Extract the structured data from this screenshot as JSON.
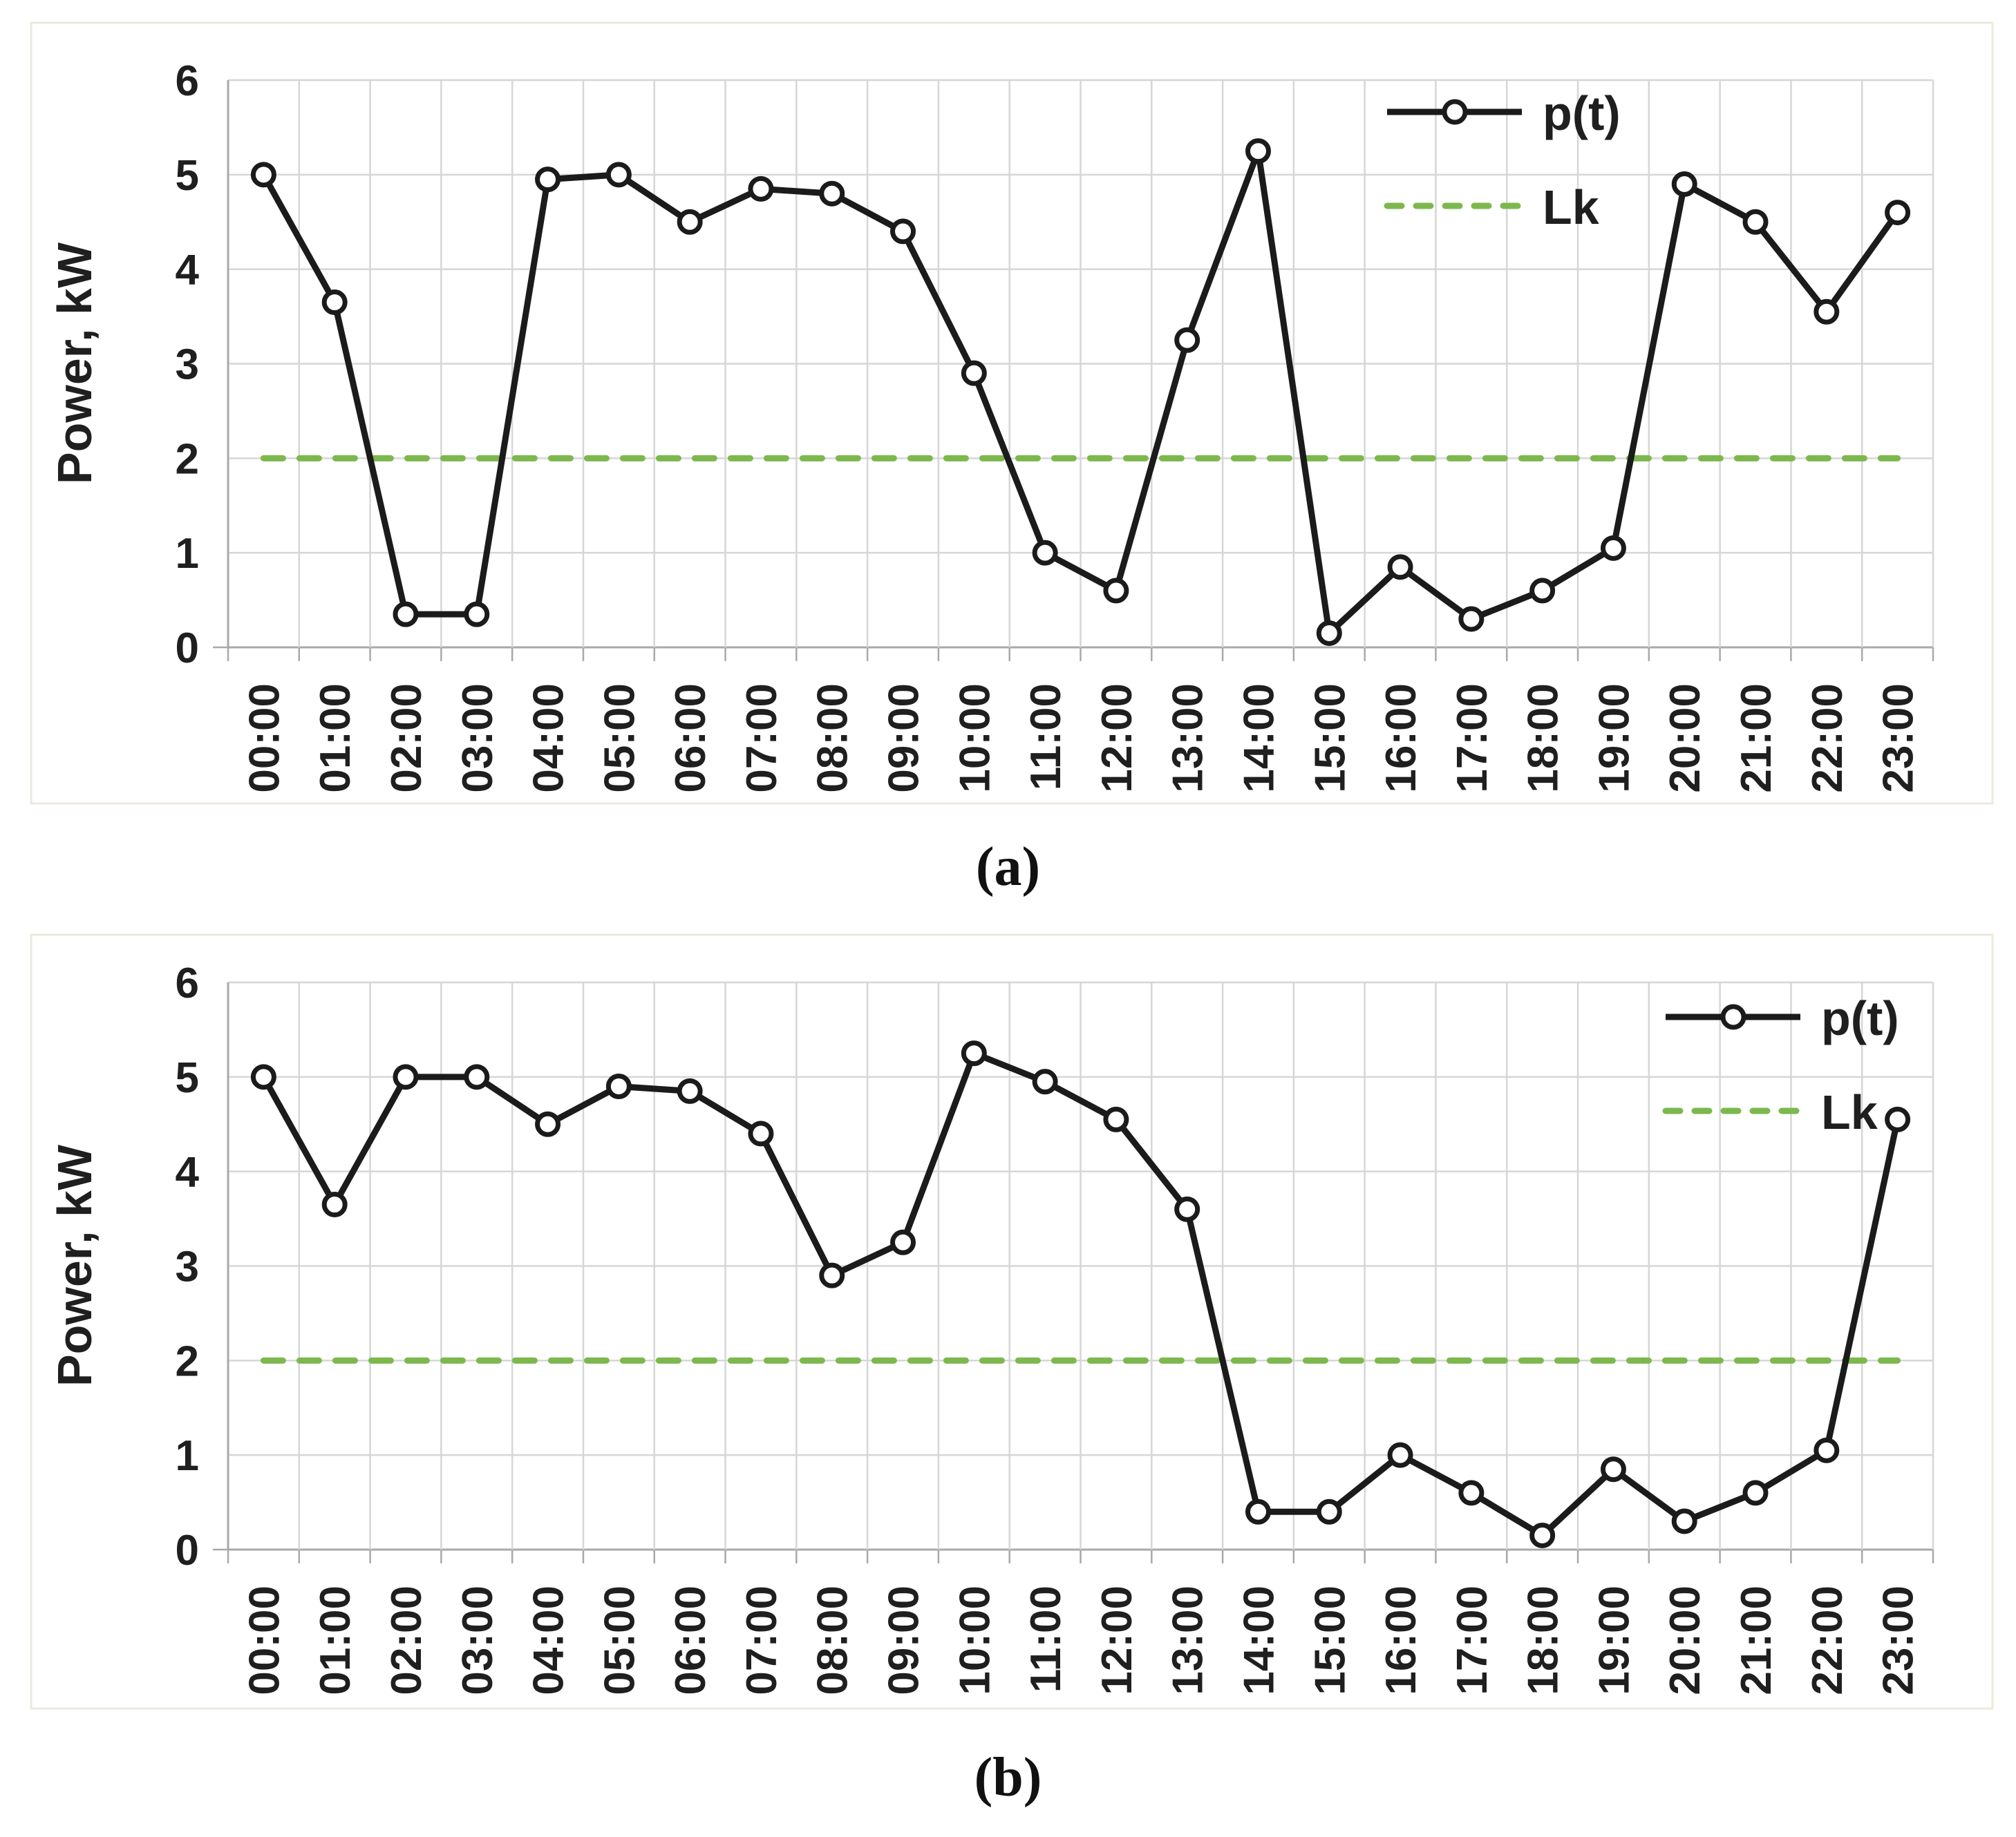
{
  "figure": {
    "description": "Two stacked line charts of household power profile p(t) versus time of day with constant limit line Lk",
    "captions": [
      "(a)",
      "(b)"
    ]
  },
  "colors": {
    "series_line": "#1b1b1b",
    "marker_fill": "#ffffff",
    "limit_line_green": "#7db84e",
    "gridline": "#d6d6d6",
    "axis_line": "#a9a9a9",
    "panel_border": "#eceadb",
    "text": "#1f1f1f",
    "background": "#ffffff"
  },
  "chart_data": [
    {
      "type": "line",
      "caption": "(a)",
      "ylabel": "Power, kW",
      "xlabel": "",
      "ylim": [
        0,
        6
      ],
      "yticks": [
        0,
        1,
        2,
        3,
        4,
        5,
        6
      ],
      "grid": true,
      "legend_position": "top-right-inside",
      "categories": [
        "00:00",
        "01:00",
        "02:00",
        "03:00",
        "04:00",
        "05:00",
        "06:00",
        "07:00",
        "08:00",
        "09:00",
        "10:00",
        "11:00",
        "12:00",
        "13:00",
        "14:00",
        "15:00",
        "16:00",
        "17:00",
        "18:00",
        "19:00",
        "20:00",
        "21:00",
        "22:00",
        "23:00"
      ],
      "series": [
        {
          "name": "p(t)",
          "style": "solid-black-open-circle-markers",
          "values": [
            5.0,
            3.65,
            0.35,
            0.35,
            4.95,
            5.0,
            4.5,
            4.85,
            4.8,
            4.4,
            2.9,
            1.0,
            0.6,
            3.25,
            5.25,
            0.15,
            0.85,
            0.3,
            0.6,
            1.05,
            4.9,
            4.5,
            3.55,
            4.6
          ]
        },
        {
          "name": "Lk",
          "style": "dashed-green-constant",
          "value": 2
        }
      ]
    },
    {
      "type": "line",
      "caption": "(b)",
      "ylabel": "Power, kW",
      "xlabel": "",
      "ylim": [
        0,
        6
      ],
      "yticks": [
        0,
        1,
        2,
        3,
        4,
        5,
        6
      ],
      "grid": true,
      "legend_position": "top-right-inside",
      "categories": [
        "00:00",
        "01:00",
        "02:00",
        "03:00",
        "04:00",
        "05:00",
        "06:00",
        "07:00",
        "08:00",
        "09:00",
        "10:00",
        "11:00",
        "12:00",
        "13:00",
        "14:00",
        "15:00",
        "16:00",
        "17:00",
        "18:00",
        "19:00",
        "20:00",
        "21:00",
        "22:00",
        "23:00"
      ],
      "series": [
        {
          "name": "p(t)",
          "style": "solid-black-open-circle-markers",
          "values": [
            5.0,
            3.65,
            5.0,
            5.0,
            4.5,
            4.9,
            4.85,
            4.4,
            2.9,
            3.25,
            5.25,
            4.95,
            4.55,
            3.6,
            0.4,
            0.4,
            1.0,
            0.6,
            0.15,
            0.85,
            0.3,
            0.6,
            1.05,
            4.55
          ]
        },
        {
          "name": "Lk",
          "style": "dashed-green-constant",
          "value": 2
        }
      ]
    }
  ]
}
